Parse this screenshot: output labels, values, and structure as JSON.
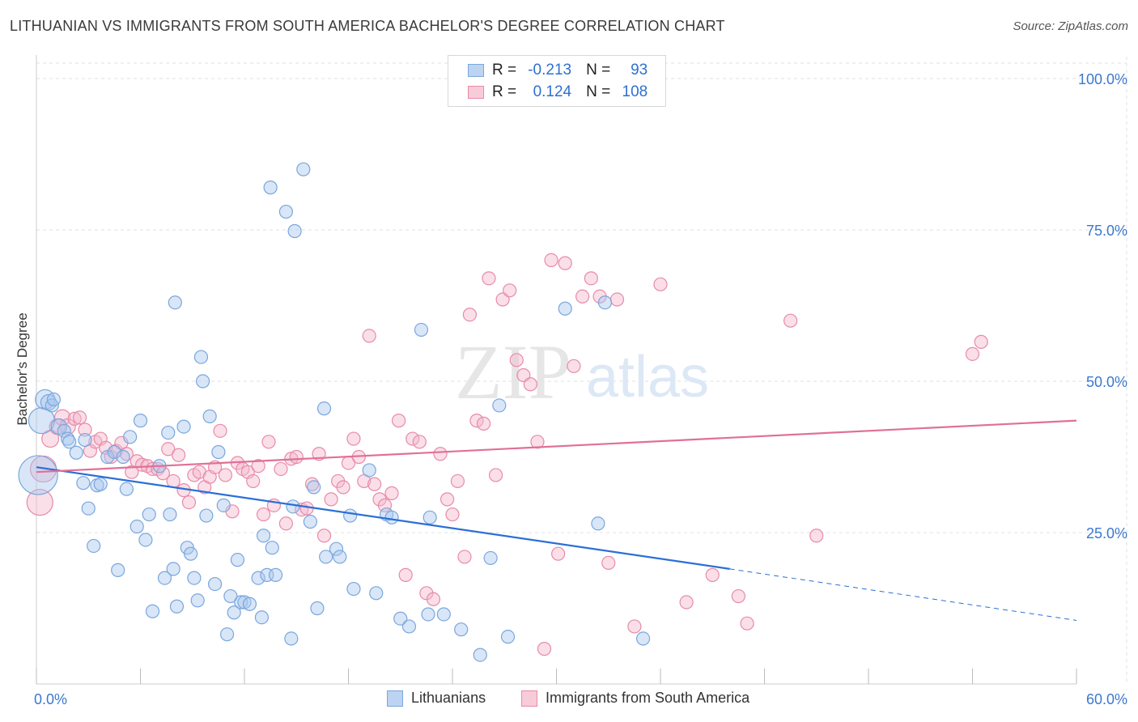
{
  "header": {
    "title": "LITHUANIAN VS IMMIGRANTS FROM SOUTH AMERICA BACHELOR'S DEGREE CORRELATION CHART",
    "source": "Source: ZipAtlas.com"
  },
  "watermark": {
    "zip": "ZIP",
    "atlas": "atlas"
  },
  "stats": {
    "r_label": "R =",
    "n_label": "N =",
    "rows": [
      {
        "r": "-0.213",
        "n": "93"
      },
      {
        "r": "0.124",
        "n": "108"
      }
    ]
  },
  "colors": {
    "blue_fill": "#a8c8f0",
    "blue_stroke": "#7aa6dc",
    "blue_line": "#2a6fd6",
    "pink_fill": "#f5b8cb",
    "pink_stroke": "#e88aa8",
    "pink_line": "#e07098",
    "axis_text": "#3b78d0",
    "grid": "#e2e2e2"
  },
  "chart_data": {
    "type": "scatter",
    "title": "LITHUANIAN VS IMMIGRANTS FROM SOUTH AMERICA BACHELOR'S DEGREE CORRELATION CHART",
    "xlabel": "",
    "ylabel": "Bachelor's Degree",
    "xlim": [
      0,
      60
    ],
    "ylim": [
      0,
      105
    ],
    "x_tick_labels": [
      "0.0%",
      "60.0%"
    ],
    "y_ticks": [
      25,
      50,
      75,
      100
    ],
    "y_tick_labels": [
      "25.0%",
      "50.0%",
      "75.0%",
      "100.0%"
    ],
    "grid": true,
    "legend_position": "bottom-center",
    "series": [
      {
        "name": "Lithuanians",
        "r": -0.213,
        "n": 93,
        "trend": {
          "x_start": 0,
          "y_start": 35.8,
          "x_solid_end": 40,
          "y_solid_end": 19.0,
          "x_end": 60,
          "y_end": 10.5
        },
        "points": [
          [
            0.1,
            34.5,
            3
          ],
          [
            0.3,
            43.5,
            2
          ],
          [
            0.5,
            47,
            1.5
          ],
          [
            0.7,
            46.5,
            1.2
          ],
          [
            0.9,
            46.0,
            1
          ],
          [
            1.0,
            47.0,
            1
          ],
          [
            1.3,
            42.5,
            1.2
          ],
          [
            1.6,
            41.8,
            1
          ],
          [
            1.8,
            40.5,
            1
          ],
          [
            1.9,
            40,
            1
          ],
          [
            2.3,
            38.2,
            1
          ],
          [
            2.8,
            40.3,
            1
          ],
          [
            2.7,
            33.2,
            1
          ],
          [
            3.0,
            29.0,
            1
          ],
          [
            3.3,
            22.8,
            1
          ],
          [
            3.5,
            32.8,
            1
          ],
          [
            3.7,
            33.0,
            1
          ],
          [
            4.1,
            37.5,
            1
          ],
          [
            4.5,
            38.3,
            1
          ],
          [
            4.7,
            18.8,
            1
          ],
          [
            5.0,
            37.5,
            1
          ],
          [
            5.2,
            32.2,
            1
          ],
          [
            5.4,
            40.8,
            1
          ],
          [
            5.8,
            26.0,
            1
          ],
          [
            6.0,
            43.5,
            1
          ],
          [
            6.3,
            23.8,
            1
          ],
          [
            6.5,
            28.0,
            1
          ],
          [
            6.7,
            12.0,
            1
          ],
          [
            7.1,
            36.0,
            1
          ],
          [
            7.4,
            17.5,
            1
          ],
          [
            7.6,
            41.5,
            1
          ],
          [
            7.7,
            28.0,
            1
          ],
          [
            7.9,
            19.0,
            1
          ],
          [
            8.1,
            12.8,
            1
          ],
          [
            8.0,
            63.0,
            1
          ],
          [
            8.5,
            42.5,
            1
          ],
          [
            8.7,
            22.5,
            1
          ],
          [
            8.9,
            21.5,
            1
          ],
          [
            9.1,
            17.5,
            1
          ],
          [
            9.3,
            13.8,
            1
          ],
          [
            9.5,
            54.0,
            1
          ],
          [
            9.6,
            50.0,
            1
          ],
          [
            9.8,
            27.8,
            1
          ],
          [
            10.0,
            44.2,
            1
          ],
          [
            10.3,
            16.5,
            1
          ],
          [
            10.5,
            38.3,
            1
          ],
          [
            10.8,
            29.5,
            1
          ],
          [
            11.0,
            8.2,
            1
          ],
          [
            11.2,
            14.5,
            1
          ],
          [
            11.4,
            11.8,
            1
          ],
          [
            11.6,
            20.5,
            1
          ],
          [
            11.8,
            13.5,
            1
          ],
          [
            12.0,
            13.5,
            1
          ],
          [
            12.3,
            13.2,
            1
          ],
          [
            12.8,
            17.5,
            1
          ],
          [
            13.0,
            11.0,
            1
          ],
          [
            13.1,
            24.5,
            1
          ],
          [
            13.3,
            18.0,
            1
          ],
          [
            13.6,
            22.5,
            1
          ],
          [
            13.8,
            18.0,
            1
          ],
          [
            13.5,
            82.0,
            1
          ],
          [
            14.4,
            78.0,
            1
          ],
          [
            14.9,
            74.8,
            1
          ],
          [
            14.7,
            7.5,
            1
          ],
          [
            14.8,
            29.3,
            1
          ],
          [
            15.4,
            85.0,
            1
          ],
          [
            15.8,
            26.8,
            1
          ],
          [
            16.2,
            12.5,
            1
          ],
          [
            16.0,
            32.5,
            1
          ],
          [
            16.6,
            45.5,
            1
          ],
          [
            16.7,
            21.0,
            1
          ],
          [
            17.3,
            22.3,
            1
          ],
          [
            17.5,
            21.0,
            1
          ],
          [
            18.1,
            27.8,
            1
          ],
          [
            18.3,
            15.7,
            1
          ],
          [
            19.2,
            35.3,
            1
          ],
          [
            19.6,
            15.0,
            1
          ],
          [
            20.2,
            28.0,
            1
          ],
          [
            20.5,
            27.5,
            1
          ],
          [
            21.0,
            10.8,
            1
          ],
          [
            21.5,
            9.5,
            1
          ],
          [
            22.2,
            58.5,
            1
          ],
          [
            22.6,
            11.5,
            1
          ],
          [
            22.7,
            27.5,
            1
          ],
          [
            23.5,
            11.5,
            1
          ],
          [
            24.5,
            9.0,
            1
          ],
          [
            25.6,
            4.8,
            1
          ],
          [
            26.2,
            20.8,
            1
          ],
          [
            26.7,
            46.0,
            1
          ],
          [
            27.2,
            7.8,
            1
          ],
          [
            30.5,
            62.0,
            1
          ],
          [
            32.4,
            26.5,
            1
          ],
          [
            32.8,
            63.0,
            1
          ],
          [
            35.0,
            7.5,
            1
          ]
        ]
      },
      {
        "name": "Immigrants from South America",
        "r": 0.124,
        "n": 108,
        "trend": {
          "x_start": 0,
          "y_start": 35.0,
          "x_end": 60,
          "y_end": 43.5
        },
        "points": [
          [
            0.2,
            30.0,
            2
          ],
          [
            0.4,
            35.5,
            2
          ],
          [
            0.8,
            40.5,
            1.3
          ],
          [
            1.2,
            42.5,
            1.2
          ],
          [
            1.5,
            44.0,
            1.2
          ],
          [
            1.8,
            42.5,
            1.2
          ],
          [
            2.2,
            43.8,
            1
          ],
          [
            2.5,
            44.0,
            1
          ],
          [
            2.8,
            42.0,
            1
          ],
          [
            3.1,
            38.5,
            1
          ],
          [
            3.4,
            40.0,
            1
          ],
          [
            3.7,
            40.5,
            1
          ],
          [
            4.0,
            39.0,
            1
          ],
          [
            4.3,
            37.5,
            1
          ],
          [
            4.6,
            38.5,
            1
          ],
          [
            4.9,
            39.8,
            1
          ],
          [
            5.2,
            38.0,
            1
          ],
          [
            5.5,
            35.0,
            1
          ],
          [
            5.8,
            36.8,
            1
          ],
          [
            6.1,
            36.2,
            1
          ],
          [
            6.4,
            36.0,
            1
          ],
          [
            6.7,
            35.5,
            1
          ],
          [
            7.0,
            35.5,
            1
          ],
          [
            7.3,
            34.8,
            1
          ],
          [
            7.6,
            38.8,
            1
          ],
          [
            7.9,
            33.5,
            1
          ],
          [
            8.2,
            37.8,
            1
          ],
          [
            8.5,
            32.0,
            1
          ],
          [
            8.8,
            30.0,
            1
          ],
          [
            9.1,
            34.5,
            1
          ],
          [
            9.4,
            35.0,
            1
          ],
          [
            9.7,
            32.5,
            1
          ],
          [
            10.0,
            34.2,
            1
          ],
          [
            10.3,
            35.8,
            1
          ],
          [
            10.6,
            41.8,
            1
          ],
          [
            10.9,
            34.5,
            1
          ],
          [
            11.3,
            28.5,
            1
          ],
          [
            11.6,
            36.5,
            1
          ],
          [
            11.9,
            35.5,
            1
          ],
          [
            12.2,
            35.0,
            1
          ],
          [
            12.5,
            33.5,
            1
          ],
          [
            12.8,
            36.0,
            1
          ],
          [
            13.1,
            28.0,
            1
          ],
          [
            13.4,
            40.0,
            1
          ],
          [
            13.7,
            29.5,
            1
          ],
          [
            14.1,
            35.5,
            1
          ],
          [
            14.4,
            26.5,
            1
          ],
          [
            14.7,
            37.2,
            1
          ],
          [
            15.0,
            37.5,
            1
          ],
          [
            15.3,
            28.8,
            1
          ],
          [
            15.6,
            29.0,
            1
          ],
          [
            15.9,
            33.0,
            1
          ],
          [
            16.3,
            38.0,
            1
          ],
          [
            16.6,
            24.5,
            1
          ],
          [
            17.0,
            30.5,
            1
          ],
          [
            17.4,
            33.5,
            1
          ],
          [
            17.7,
            32.5,
            1
          ],
          [
            18.0,
            36.5,
            1
          ],
          [
            18.3,
            40.5,
            1
          ],
          [
            18.6,
            37.5,
            1
          ],
          [
            18.9,
            33.5,
            1
          ],
          [
            19.2,
            57.5,
            1
          ],
          [
            19.5,
            33.0,
            1
          ],
          [
            19.8,
            30.5,
            1
          ],
          [
            20.1,
            29.5,
            1
          ],
          [
            20.5,
            31.5,
            1
          ],
          [
            20.9,
            43.5,
            1
          ],
          [
            21.3,
            18.0,
            1
          ],
          [
            21.7,
            40.5,
            1
          ],
          [
            22.1,
            40.0,
            1
          ],
          [
            22.5,
            15.0,
            1
          ],
          [
            22.9,
            14.0,
            1
          ],
          [
            23.3,
            38.0,
            1
          ],
          [
            23.7,
            30.5,
            1
          ],
          [
            24.0,
            28.0,
            1
          ],
          [
            24.3,
            33.5,
            1
          ],
          [
            24.7,
            21.0,
            1
          ],
          [
            25.0,
            61.0,
            1
          ],
          [
            25.4,
            43.5,
            1
          ],
          [
            25.8,
            43.0,
            1
          ],
          [
            26.1,
            67.0,
            1
          ],
          [
            26.5,
            34.5,
            1
          ],
          [
            26.9,
            63.5,
            1
          ],
          [
            27.3,
            65.0,
            1
          ],
          [
            27.7,
            53.5,
            1
          ],
          [
            28.1,
            51.0,
            1
          ],
          [
            28.5,
            49.5,
            1
          ],
          [
            28.9,
            40.0,
            1
          ],
          [
            29.3,
            5.8,
            1
          ],
          [
            29.7,
            70.0,
            1
          ],
          [
            30.1,
            21.5,
            1
          ],
          [
            30.5,
            69.5,
            1
          ],
          [
            31.0,
            52.5,
            1
          ],
          [
            31.5,
            64.0,
            1
          ],
          [
            32.0,
            67.0,
            1
          ],
          [
            32.5,
            64.0,
            1
          ],
          [
            33.0,
            20.0,
            1
          ],
          [
            33.5,
            63.5,
            1
          ],
          [
            34.5,
            9.5,
            1
          ],
          [
            36.0,
            66.0,
            1
          ],
          [
            37.5,
            13.5,
            1
          ],
          [
            39.0,
            18.0,
            1
          ],
          [
            40.5,
            14.5,
            1
          ],
          [
            41.0,
            10.0,
            1
          ],
          [
            43.5,
            60.0,
            1
          ],
          [
            45.0,
            24.5,
            1
          ],
          [
            54.0,
            54.5,
            1
          ],
          [
            54.5,
            56.5,
            1
          ]
        ]
      }
    ]
  },
  "legend": {
    "items": [
      {
        "label": "Lithuanians"
      },
      {
        "label": "Immigrants from South America"
      }
    ]
  }
}
